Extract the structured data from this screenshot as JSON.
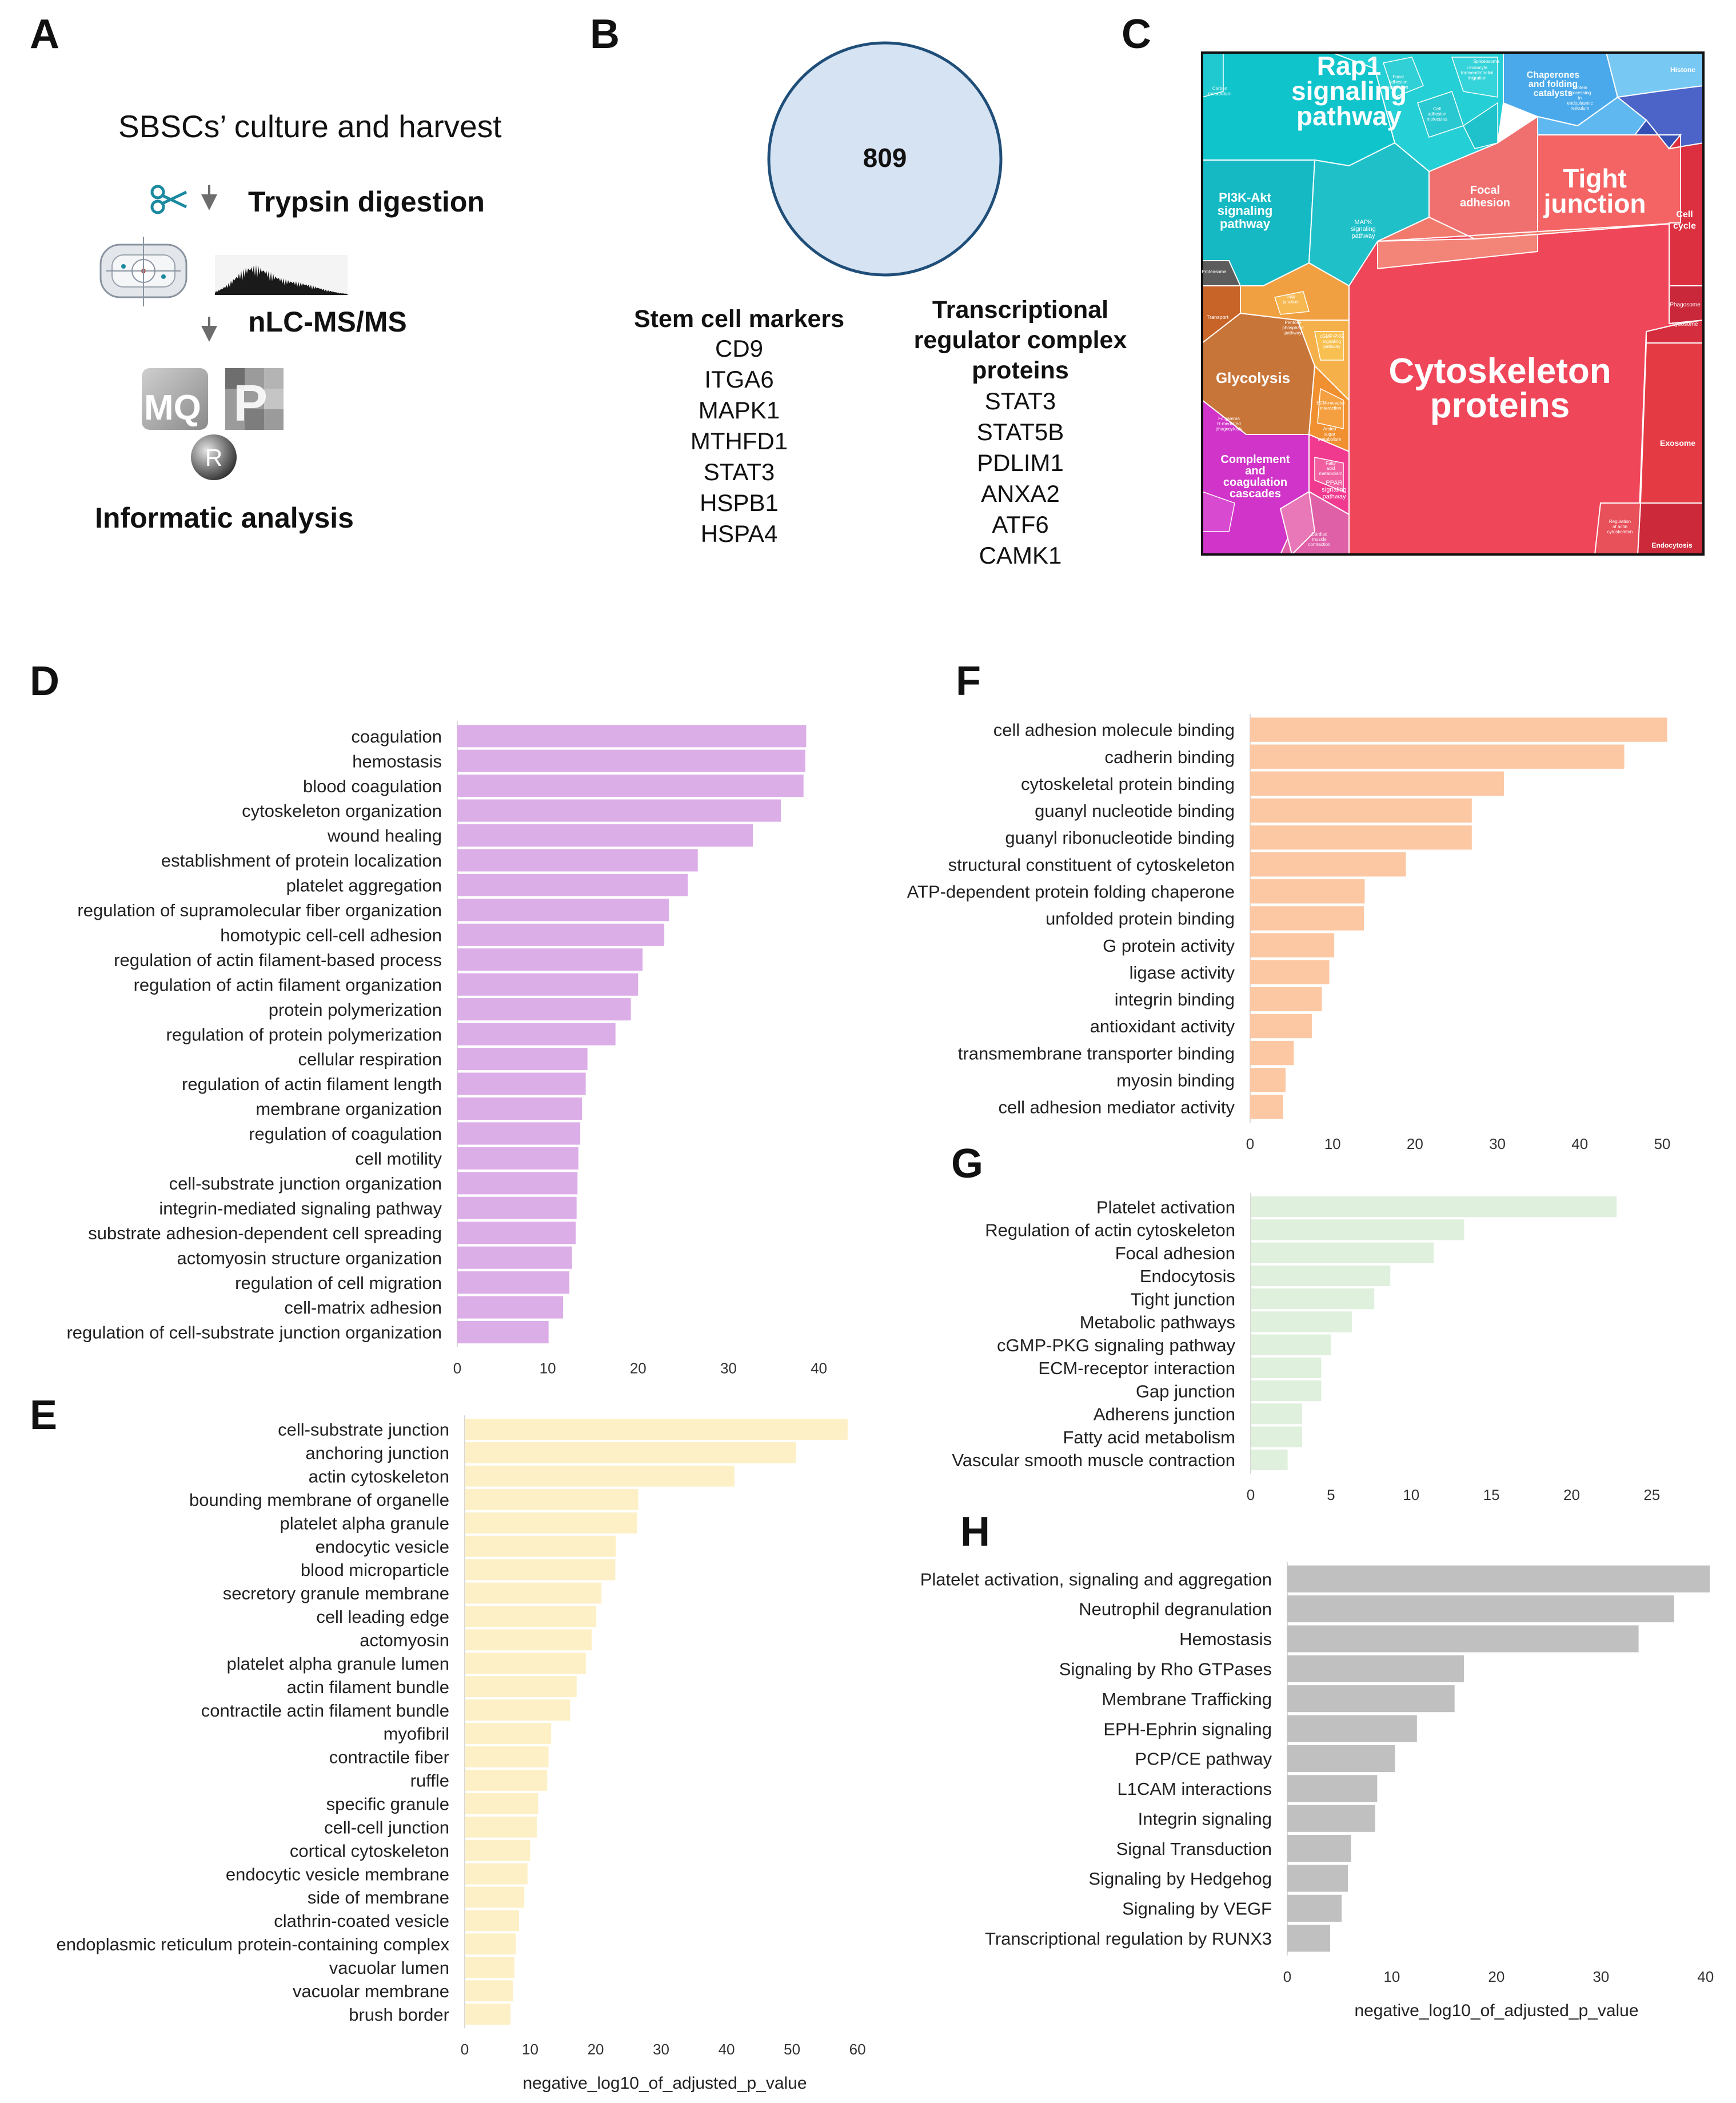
{
  "panels": {
    "A": {
      "letter": "A",
      "title": "SBSCs’ culture and harvest",
      "step1": "Trypsin digestion",
      "step2": "nLC-MS/MS",
      "mq_letters": "MQ",
      "p_letter": "P",
      "r_letter": "R",
      "footer": "Informatic analysis",
      "icons": [
        "scissors-icon",
        "down-arrow-icon",
        "lc-instrument-icon",
        "mass-spectrum-icon",
        "maxquant-logo-icon",
        "perseus-logo-icon",
        "r-logo-icon"
      ]
    },
    "B": {
      "letter": "B",
      "venn_count": "809",
      "venn_fill": "#d6e3f3",
      "venn_stroke": "#1f4e79",
      "stem_title": "Stem cell markers",
      "stem_markers": [
        "CD9",
        "ITGA6",
        "MAPK1",
        "MTHFD1",
        "STAT3",
        "HSPB1",
        "HSPA4"
      ],
      "tr_title_lines": [
        "Transcriptional",
        "regulator complex",
        "proteins"
      ],
      "tr_proteins": [
        "STAT3",
        "STAT5B",
        "PDLIM1",
        "ANXA2",
        "ATF6",
        "CAMK1"
      ]
    },
    "C": {
      "letter": "C",
      "big_labels": {
        "rap1": [
          "Rap1",
          "signaling",
          "pathway"
        ],
        "tight": [
          "Tight",
          "junction"
        ],
        "cyto": [
          "Cytoskeleton",
          "proteins"
        ],
        "pi3k": [
          "PI3K-Akt",
          "signaling",
          "pathway"
        ],
        "glyco": "Glycolysis",
        "complement": [
          "Complement",
          "and",
          "coagulation",
          "cascades"
        ],
        "focal": [
          "Focal",
          "adhesion"
        ],
        "cellcycle": [
          "Cell",
          "cycle"
        ],
        "exosome": "Exosome",
        "endocytosis": "Endocytosis",
        "chaperones": [
          "Chaperones",
          "and folding",
          "catalysts"
        ],
        "histone": "Histone",
        "mapk": [
          "MAPK",
          "signaling",
          "pathway"
        ],
        "ppar": [
          "PPAR",
          "signaling",
          "pathway"
        ],
        "lysosome": "Lysosome",
        "phagosome": "Phagosome"
      },
      "small_labels": {
        "proteasome": "Proteasome",
        "transport": "Transport",
        "protein_processing": [
          "Protein",
          "processing",
          "in",
          "endoplasmic",
          "reticulum"
        ],
        "carbon": [
          "Carbon",
          "metabolism"
        ],
        "focal_small": [
          "Focal",
          "adhesion",
          "regulation"
        ],
        "regulation_actin": [
          "Regulation",
          "of actin",
          "cytoskeleton"
        ],
        "fc_gamma": [
          "Fc gamma",
          "R-mediated",
          "phagocytosis"
        ],
        "spliceosome": "Spliceosome",
        "cardiac": [
          "Cardiac",
          "muscle",
          "contraction"
        ],
        "gap": [
          "Gap",
          "junction"
        ],
        "cgmp": [
          "cGMP-PKG",
          "signaling",
          "pathway"
        ],
        "cell_adhesion": [
          "Cell",
          "adhesion",
          "molecules"
        ],
        "leukocyte": [
          "Leukocyte",
          "transendothelial",
          "migration"
        ],
        "ecm": [
          "ECM-receptor",
          "interaction"
        ],
        "fatty": [
          "Fatty",
          "acid",
          "metabolism"
        ],
        "pentose": [
          "Pentose",
          "phosphate",
          "pathway"
        ],
        "amino": [
          "Amino",
          "sugar",
          "metabolism"
        ]
      }
    },
    "axis_label": "negative_log10_of_adjusted_p_value"
  },
  "chart_data": [
    {
      "id": "D",
      "type": "bar",
      "orientation": "horizontal",
      "letter": "D",
      "color": "#dcaee8",
      "xlabel": "",
      "xlim": [
        0,
        43
      ],
      "ticks": [
        0,
        10,
        20,
        30,
        40
      ],
      "categories": [
        "coagulation",
        "hemostasis",
        "blood coagulation",
        "cytoskeleton organization",
        "wound healing",
        "establishment of protein localization",
        "platelet aggregation",
        "regulation of supramolecular fiber organization",
        "homotypic cell-cell adhesion",
        "regulation of actin filament-based process",
        "regulation of actin filament organization",
        "protein polymerization",
        "regulation of protein polymerization",
        "cellular respiration",
        "regulation of actin filament length",
        "membrane organization",
        "regulation of coagulation",
        "cell motility",
        "cell-substrate junction organization",
        "integrin-mediated signaling pathway",
        "substrate adhesion-dependent cell spreading",
        "actomyosin structure organization",
        "regulation of cell migration",
        "cell-matrix adhesion",
        "regulation of cell-substrate junction organization"
      ],
      "values": [
        38.6,
        38.5,
        38.3,
        35.8,
        32.7,
        26.6,
        25.5,
        23.4,
        22.9,
        20.5,
        20.0,
        19.2,
        17.5,
        14.4,
        14.2,
        13.8,
        13.6,
        13.4,
        13.3,
        13.2,
        13.1,
        12.7,
        12.4,
        11.7,
        10.1
      ]
    },
    {
      "id": "E",
      "type": "bar",
      "orientation": "horizontal",
      "letter": "E",
      "color": "#fdf0c6",
      "xlabel": "negative_log10_of_adjusted_p_value",
      "xlim": [
        0,
        62
      ],
      "ticks": [
        0,
        10,
        20,
        30,
        40,
        50,
        60
      ],
      "categories": [
        "cell-substrate junction",
        "anchoring junction",
        "actin cytoskeleton",
        "bounding membrane of organelle",
        "platelet alpha granule",
        "endocytic vesicle",
        "blood microparticle",
        "secretory granule membrane",
        "cell leading edge",
        "actomyosin",
        "platelet alpha granule lumen",
        "actin filament bundle",
        "contractile actin filament bundle",
        "myofibril",
        "contractile fiber",
        "ruffle",
        "specific granule",
        "cell-cell junction",
        "cortical cytoskeleton",
        "endocytic vesicle membrane",
        "side of membrane",
        "clathrin-coated vesicle",
        "endoplasmic reticulum protein-containing complex",
        "vacuolar lumen",
        "vacuolar membrane",
        "brush border"
      ],
      "values": [
        58.5,
        50.6,
        41.2,
        26.5,
        26.3,
        23.1,
        23.0,
        20.9,
        20.1,
        19.4,
        18.5,
        17.1,
        16.1,
        13.2,
        12.8,
        12.6,
        11.2,
        11.0,
        10.0,
        9.6,
        9.1,
        8.3,
        7.8,
        7.6,
        7.4,
        7.0
      ]
    },
    {
      "id": "F",
      "type": "bar",
      "orientation": "horizontal",
      "letter": "F",
      "color": "#fcc8a4",
      "xlabel": "",
      "xlim": [
        0,
        55
      ],
      "ticks": [
        0,
        10,
        20,
        30,
        40,
        50
      ],
      "categories": [
        "cell adhesion molecule binding",
        "cadherin binding",
        "cytoskeletal protein binding",
        "guanyl nucleotide binding",
        "guanyl ribonucleotide binding",
        "structural constituent of cytoskeleton",
        "ATP-dependent protein folding chaperone",
        "unfolded protein binding",
        "G protein activity",
        "ligase activity",
        "integrin binding",
        "antioxidant activity",
        "transmembrane transporter binding",
        "myosin binding",
        "cell adhesion mediator activity"
      ],
      "values": [
        50.6,
        45.4,
        30.8,
        26.9,
        26.9,
        18.9,
        13.9,
        13.8,
        10.2,
        9.6,
        8.7,
        7.5,
        5.3,
        4.3,
        4.0
      ]
    },
    {
      "id": "G",
      "type": "bar",
      "orientation": "horizontal",
      "letter": "G",
      "color": "#dff0dc",
      "xlabel": "",
      "xlim": [
        0,
        27.5
      ],
      "ticks": [
        0,
        5,
        10,
        15,
        20,
        25
      ],
      "categories": [
        "Platelet activation",
        "Regulation of actin cytoskeleton",
        "Focal adhesion",
        "Endocytosis",
        "Tight junction",
        "Metabolic pathways",
        "cGMP-PKG signaling pathway",
        "ECM-receptor interaction",
        "Gap junction",
        "Adherens junction",
        "Fatty acid metabolism",
        "Vascular smooth muscle contraction"
      ],
      "values": [
        22.8,
        13.3,
        11.4,
        8.7,
        7.7,
        6.3,
        5.0,
        4.4,
        4.4,
        3.2,
        3.2,
        2.3
      ]
    },
    {
      "id": "H",
      "type": "bar",
      "orientation": "horizontal",
      "letter": "H",
      "color": "#c0c0c0",
      "xlabel": "negative_log10_of_adjusted_p_value",
      "xlim": [
        0,
        41
      ],
      "ticks": [
        0,
        10,
        20,
        30,
        40
      ],
      "categories": [
        "Platelet activation, signaling and aggregation",
        "Neutrophil degranulation",
        "Hemostasis",
        "Signaling by Rho GTPases",
        "Membrane Trafficking",
        "EPH-Ephrin signaling",
        "PCP/CE pathway",
        "L1CAM interactions",
        "Integrin signaling",
        "Signal Transduction",
        "Signaling by Hedgehog",
        "Signaling by VEGF",
        "Transcriptional regulation by RUNX3"
      ],
      "values": [
        40.4,
        37.0,
        33.6,
        16.9,
        16.0,
        12.4,
        10.3,
        8.6,
        8.4,
        6.1,
        5.8,
        5.2,
        4.1
      ]
    }
  ]
}
